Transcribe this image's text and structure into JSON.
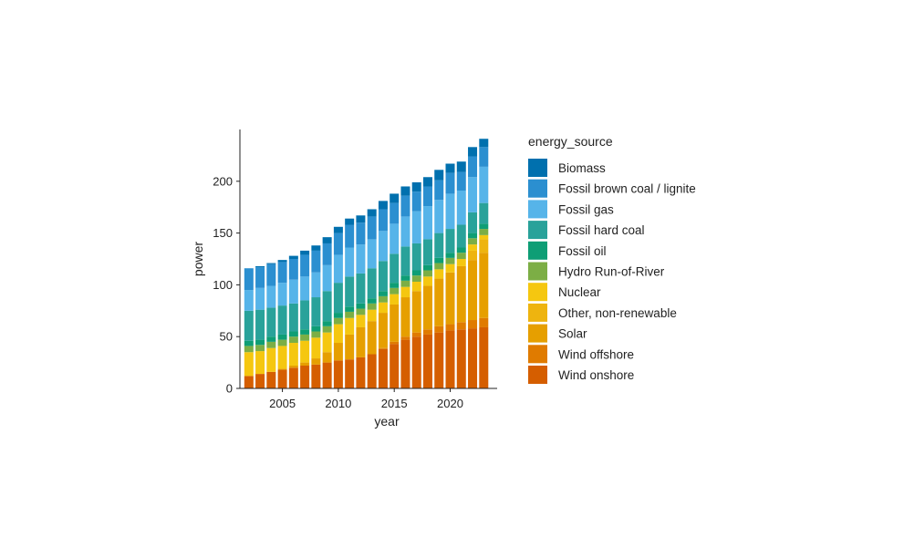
{
  "chart_data": {
    "type": "bar",
    "stacked": true,
    "xlabel": "year",
    "ylabel": "power",
    "xticks": [
      "2005",
      "2010",
      "2015",
      "2020"
    ],
    "yticks": [
      "0",
      "50",
      "100",
      "150",
      "200"
    ],
    "ylim": [
      0,
      250
    ],
    "grid": false,
    "legend_title": "energy_source",
    "legend_position": "right",
    "x": [
      2002,
      2003,
      2004,
      2005,
      2006,
      2007,
      2008,
      2009,
      2010,
      2011,
      2012,
      2013,
      2014,
      2015,
      2016,
      2017,
      2018,
      2019,
      2020,
      2021,
      2022,
      2023
    ],
    "series": [
      {
        "name": "Wind onshore",
        "color": "#D55E00",
        "values": [
          12,
          14,
          16,
          18,
          20,
          22,
          23,
          25,
          27,
          28,
          30,
          33,
          38,
          43,
          47,
          50,
          52,
          54,
          56,
          57,
          58,
          59
        ]
      },
      {
        "name": "Wind offshore",
        "color": "#E07B00",
        "values": [
          0,
          0,
          0,
          0,
          0,
          0,
          0,
          0,
          0,
          0,
          0,
          0,
          1,
          2,
          3,
          4,
          5,
          6,
          6,
          7,
          8,
          9
        ]
      },
      {
        "name": "Solar",
        "color": "#E69F00",
        "values": [
          0,
          0,
          0,
          1,
          2,
          3,
          6,
          10,
          17,
          24,
          29,
          32,
          34,
          36,
          38,
          40,
          42,
          46,
          50,
          54,
          58,
          63
        ]
      },
      {
        "name": "Other, non-renewable",
        "color": "#EEB40F",
        "values": [
          0,
          0,
          0,
          0,
          0,
          0,
          0,
          0,
          0,
          0,
          0,
          0,
          0,
          0,
          0,
          0,
          0,
          0,
          0,
          0,
          9,
          13
        ]
      },
      {
        "name": "Nuclear",
        "color": "#F5C710",
        "values": [
          23,
          22,
          23,
          22,
          22,
          21,
          20,
          19,
          18,
          16,
          12,
          11,
          10,
          10,
          10,
          9,
          9,
          9,
          8,
          7,
          6,
          4
        ]
      },
      {
        "name": "Hydro Run-of-River",
        "color": "#7CAE45",
        "values": [
          6,
          6,
          6,
          6,
          6,
          6,
          6,
          6,
          6,
          6,
          6,
          6,
          6,
          6,
          6,
          6,
          6,
          6,
          6,
          6,
          6,
          6
        ]
      },
      {
        "name": "Fossil oil",
        "color": "#0E9E75",
        "values": [
          5,
          5,
          5,
          5,
          5,
          5,
          5,
          5,
          5,
          5,
          5,
          5,
          5,
          5,
          5,
          5,
          5,
          5,
          5,
          5,
          5,
          5
        ]
      },
      {
        "name": "Fossil hard coal",
        "color": "#29A29A",
        "values": [
          29,
          29,
          28,
          28,
          27,
          28,
          28,
          29,
          29,
          29,
          29,
          29,
          29,
          28,
          28,
          26,
          25,
          24,
          23,
          22,
          20,
          20
        ]
      },
      {
        "name": "Fossil gas",
        "color": "#56B4E9",
        "values": [
          20,
          21,
          21,
          22,
          23,
          23,
          24,
          25,
          27,
          28,
          28,
          28,
          29,
          29,
          29,
          31,
          32,
          32,
          34,
          33,
          34,
          35
        ]
      },
      {
        "name": "Fossil brown coal / lignite",
        "color": "#2B8FD0",
        "values": [
          21,
          20,
          21,
          20,
          20,
          21,
          21,
          21,
          21,
          22,
          21,
          22,
          21,
          20,
          20,
          19,
          19,
          19,
          20,
          18,
          20,
          19
        ]
      },
      {
        "name": "Biomass",
        "color": "#0070AE",
        "values": [
          0,
          1,
          1,
          2,
          3,
          4,
          5,
          6,
          6,
          6,
          7,
          7,
          8,
          9,
          9,
          9,
          9,
          10,
          9,
          10,
          9,
          8
        ]
      }
    ]
  }
}
